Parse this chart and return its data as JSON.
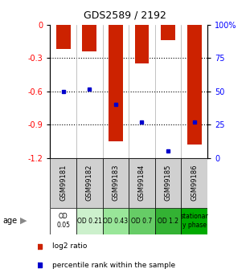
{
  "title": "GDS2589 / 2192",
  "samples": [
    "GSM99181",
    "GSM99182",
    "GSM99183",
    "GSM99184",
    "GSM99185",
    "GSM99186"
  ],
  "log2_ratio": [
    -0.22,
    -0.24,
    -1.05,
    -0.35,
    -0.14,
    -1.08
  ],
  "percentile_rank": [
    50,
    52,
    40,
    27,
    5,
    27
  ],
  "age_labels": [
    "OD\n0.05",
    "OD 0.21",
    "OD 0.43",
    "OD 0.7",
    "OD 1.2",
    "stationar\ny phase"
  ],
  "age_colors": [
    "#ffffff",
    "#ccf0cc",
    "#99e699",
    "#66cc66",
    "#33b233",
    "#00aa00"
  ],
  "ylim_left": [
    -1.2,
    0
  ],
  "ylim_right": [
    0,
    100
  ],
  "yticks_left": [
    0,
    -0.3,
    -0.6,
    -0.9,
    -1.2
  ],
  "yticks_right": [
    0,
    25,
    50,
    75,
    100
  ],
  "bar_color": "#cc2200",
  "dot_color": "#0000cc",
  "bar_width": 0.55,
  "background_color": "#ffffff"
}
